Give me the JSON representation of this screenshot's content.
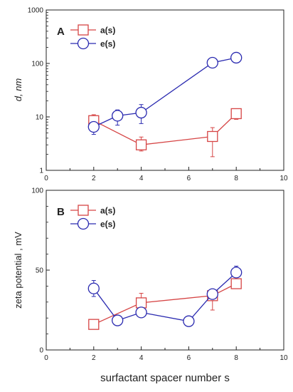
{
  "colors": {
    "a": "#d64545",
    "e": "#2a2ab0",
    "axis": "#222222"
  },
  "xlabel": "surfactant spacer number s",
  "chart_data": [
    {
      "type": "line",
      "panel_letter": "A",
      "ylabel": "d, nm",
      "yscale": "log",
      "xlim": [
        0,
        10
      ],
      "ylim": [
        1,
        1000
      ],
      "xticks": [
        "0",
        "2",
        "4",
        "6",
        "8",
        "10"
      ],
      "yticks": [
        "1",
        "10",
        "100",
        "1000"
      ],
      "legend_position": "top-left",
      "series": [
        {
          "name": "a(s)",
          "marker": "square",
          "x": [
            2,
            4,
            7,
            8
          ],
          "y": [
            8.5,
            3.0,
            4.3,
            11.5
          ],
          "err_low": [
            1.6,
            0.7,
            2.5,
            2.5
          ],
          "err_high": [
            2.5,
            1.2,
            2.0,
            1.5
          ]
        },
        {
          "name": "e(s)",
          "marker": "circle",
          "x": [
            2,
            3,
            4,
            7,
            8
          ],
          "y": [
            6.5,
            10.5,
            12.0,
            103,
            128
          ],
          "err_low": [
            1.8,
            3.5,
            4.5,
            12,
            15
          ],
          "err_high": [
            1.5,
            3.0,
            5.0,
            10,
            14
          ]
        }
      ]
    },
    {
      "type": "line",
      "panel_letter": "B",
      "ylabel": "zeta potential , mV",
      "yscale": "linear",
      "xlim": [
        0,
        10
      ],
      "ylim": [
        0,
        100
      ],
      "xticks": [
        "0",
        "2",
        "4",
        "6",
        "8",
        "10"
      ],
      "yticks": [
        "0",
        "50",
        "100"
      ],
      "legend_position": "top-left",
      "series": [
        {
          "name": "a(s)",
          "marker": "square",
          "x": [
            2,
            4,
            7,
            8
          ],
          "y": [
            16,
            29.5,
            34,
            41.5
          ],
          "err_low": [
            1.5,
            5,
            9,
            3
          ],
          "err_high": [
            1.5,
            6,
            4,
            2
          ]
        },
        {
          "name": "e(s)",
          "marker": "circle",
          "x": [
            2,
            3,
            4,
            6,
            7,
            8
          ],
          "y": [
            38.5,
            18.5,
            23.5,
            18,
            35,
            48.5
          ],
          "err_low": [
            5,
            1.5,
            1.5,
            1,
            3,
            3
          ],
          "err_high": [
            5,
            1.5,
            1.5,
            1,
            3,
            4
          ]
        }
      ]
    }
  ]
}
